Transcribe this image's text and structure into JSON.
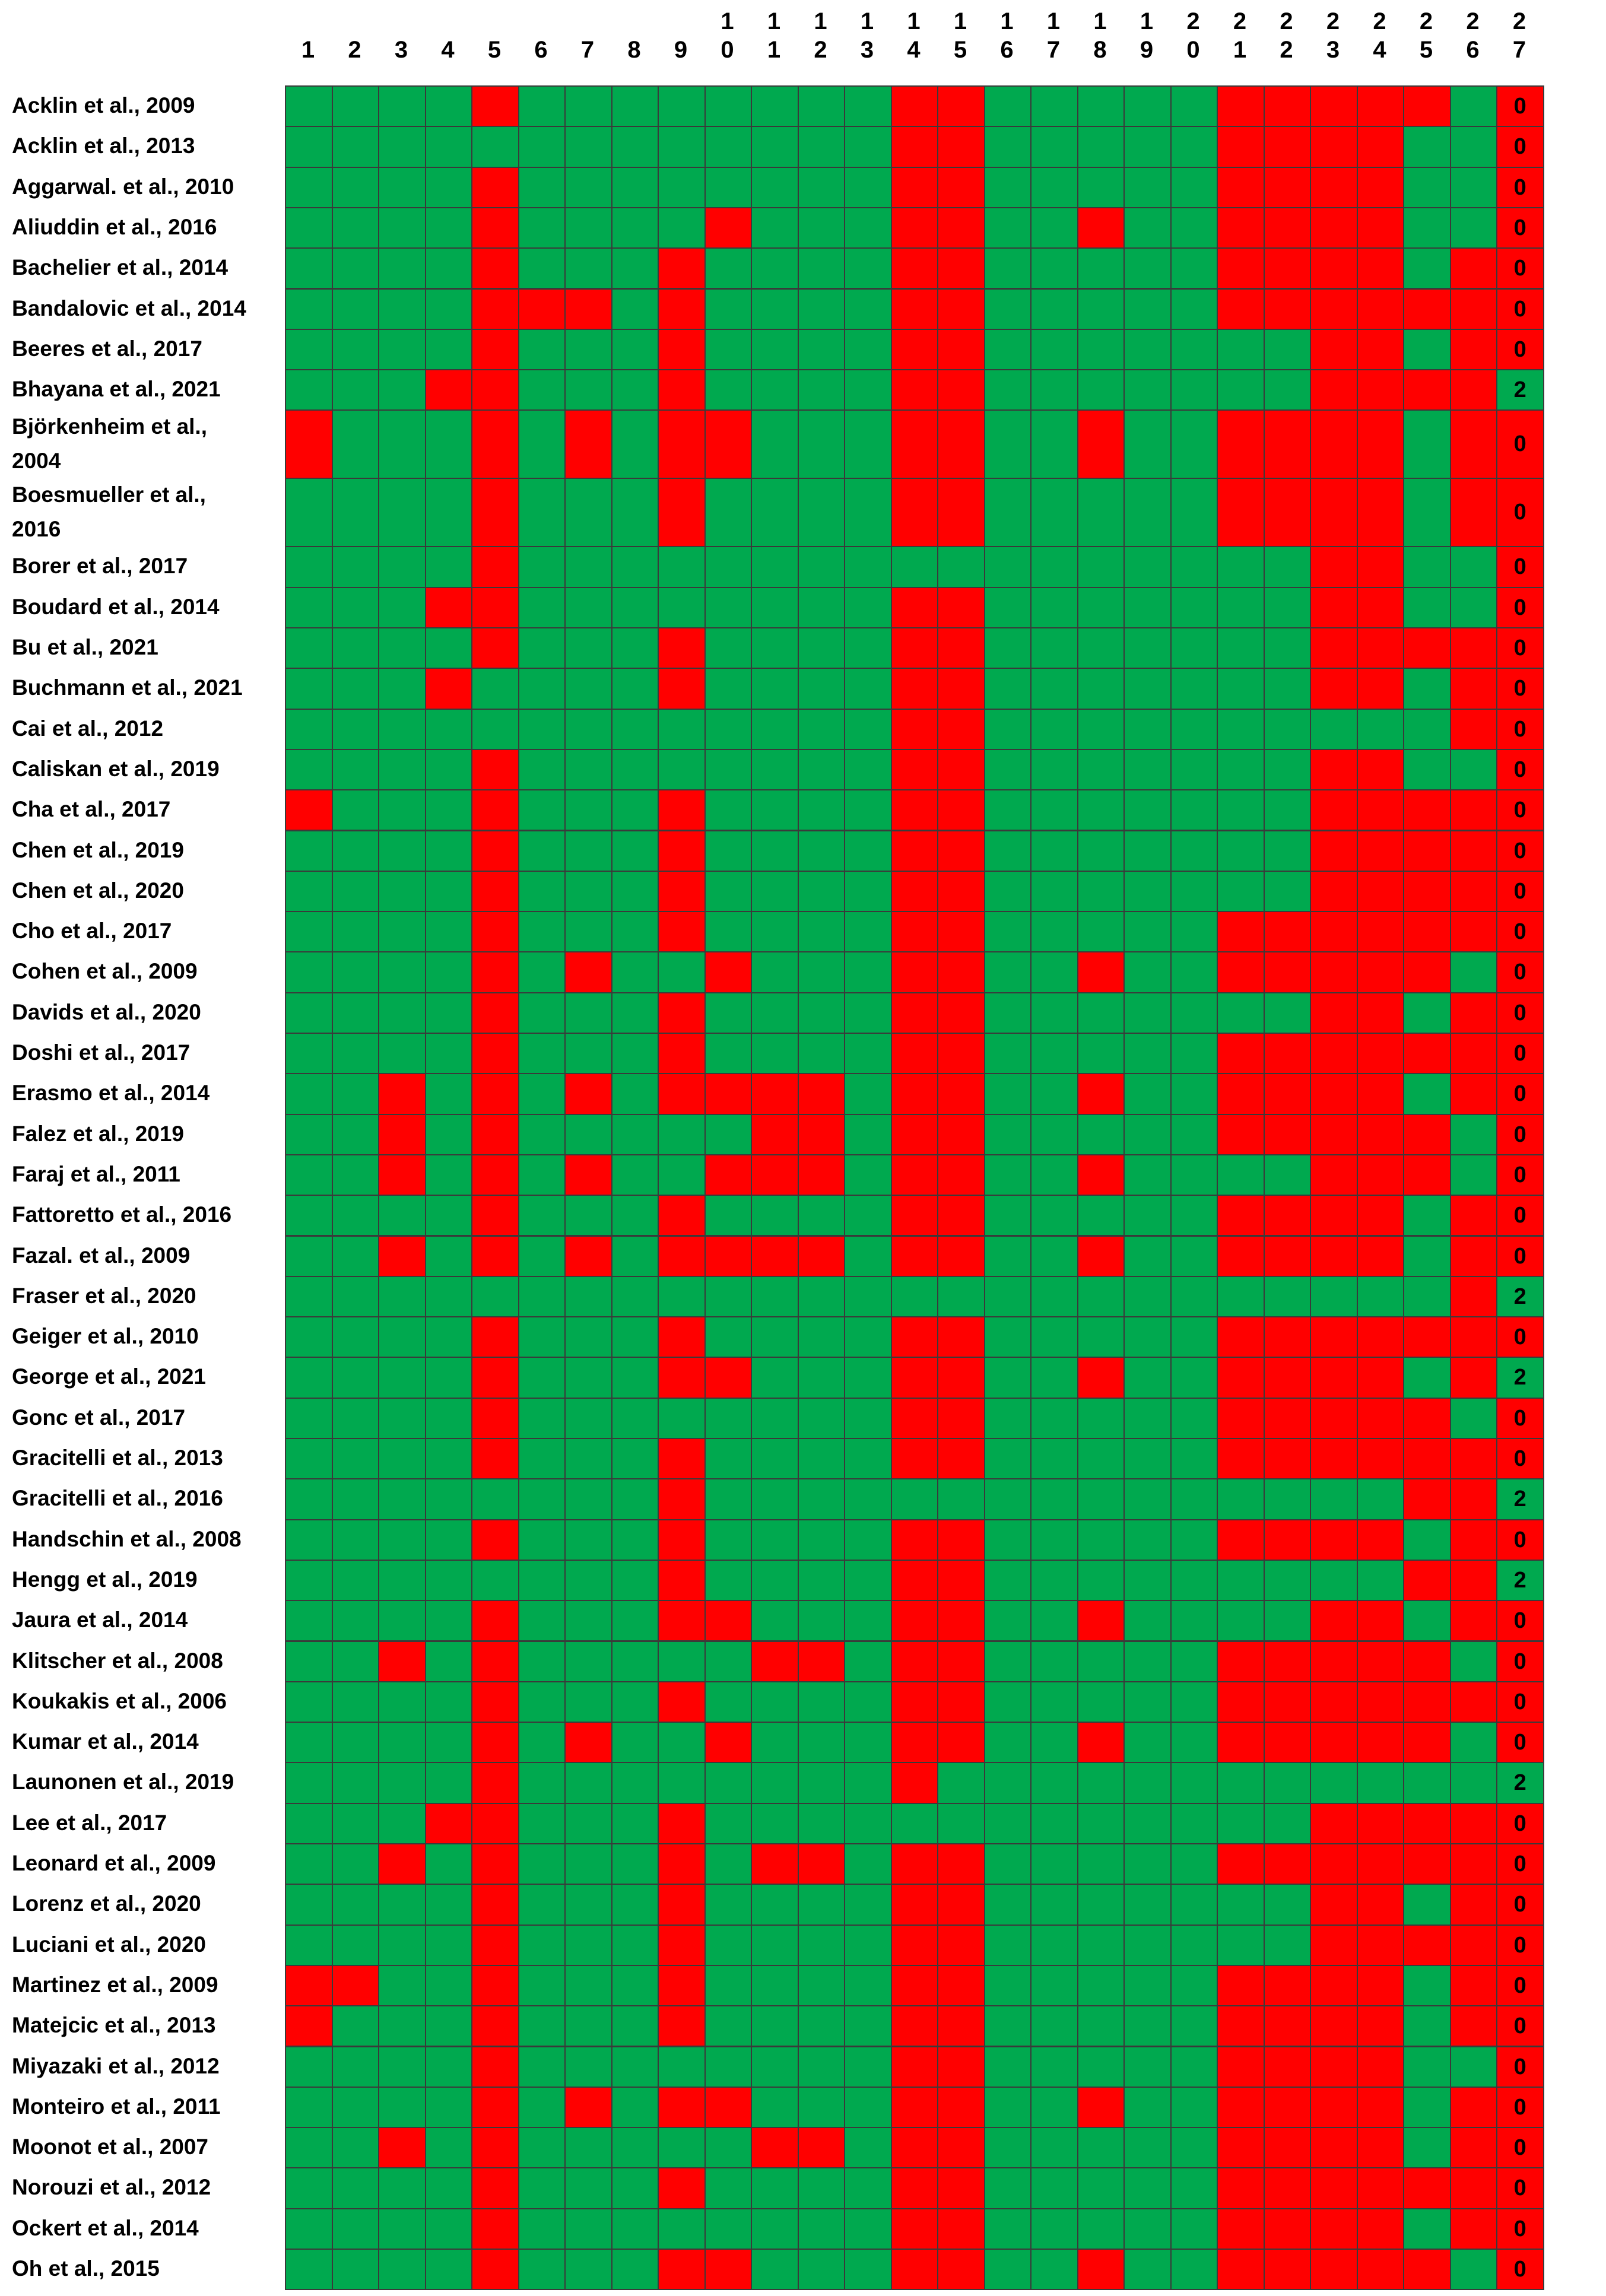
{
  "chart_data": {
    "type": "heatmap",
    "title": "",
    "colors": {
      "Y": "#00a94f",
      "N": "#ff0000",
      "border": "#3a3a3a"
    },
    "columns": [
      "1",
      "2",
      "3",
      "4",
      "5",
      "6",
      "7",
      "8",
      "9",
      "10",
      "11",
      "12",
      "13",
      "14",
      "15",
      "16",
      "17",
      "18",
      "19",
      "20",
      "21",
      "22",
      "23",
      "24",
      "25",
      "26",
      "27"
    ],
    "legend": {
      "Y": "green",
      "N": "red"
    },
    "rows": [
      {
        "study": "Acklin et al., 2009",
        "cells": "YYYYNYYYYYYYYNNYYYYYNNNNNY",
        "score": "0"
      },
      {
        "study": "Acklin et al., 2013",
        "cells": "YYYYYYYYYYYYYNNYYYYYNNNNYY",
        "score": "0"
      },
      {
        "study": "Aggarwal. et al., 2010",
        "cells": "YYYYNYYYYYYYYNNYYYYYNNNNYY",
        "score": "0"
      },
      {
        "study": "Aliuddin et al., 2016",
        "cells": "YYYYNYYYYNYYYNNYYNYYNNNNYY",
        "score": "0"
      },
      {
        "study": "Bachelier et al., 2014",
        "cells": "YYYYNYYYNYYYYNNYYYYYNNNNYN",
        "score": "0"
      },
      {
        "study": "Bandalovic et al., 2014",
        "cells": "YYYYNNNYNYYYYNNYYYYYNNNNNN",
        "score": "0"
      },
      {
        "study": "Beeres et al., 2017",
        "cells": "YYYYNYYYNYYYYNNYYYYYYYNNYN",
        "score": "0"
      },
      {
        "study": "Bhayana et al., 2021",
        "cells": "YYYNNYYYNYYYYNNYYYYYYYNNNN",
        "score": "2"
      },
      {
        "study": "Björkenheim et al., 2004",
        "cells": "NYYYNYNYNNYYYNNYYNYYNNNNYN",
        "score": "0"
      },
      {
        "study": "Boesmueller et al., 2016",
        "cells": "YYYYNYYYNYYYYNNYYYYYNNNNYN",
        "score": "0"
      },
      {
        "study": "Borer et al., 2017",
        "cells": "YYYYNYYYYYYYYYYYYYYYYYNNYY",
        "score": "0"
      },
      {
        "study": "Boudard et al., 2014",
        "cells": "YYYNNYYYYYYYYNNYYYYYYYNNYY",
        "score": "0"
      },
      {
        "study": "Bu et al., 2021",
        "cells": "YYYYNYYYNYYYYNNYYYYYYYNNNN",
        "score": "0"
      },
      {
        "study": "Buchmann et al., 2021",
        "cells": "YYYNYYYYNYYYYNNYYYYYYYNNYN",
        "score": "0"
      },
      {
        "study": "Cai et al., 2012",
        "cells": "YYYYYYYYYYYYYNNYYYYYYYYYYN",
        "score": "0"
      },
      {
        "study": "Caliskan et al., 2019",
        "cells": "YYYYNYYYYYYYYNNYYYYYYYNNYY",
        "score": "0"
      },
      {
        "study": "Cha et al., 2017",
        "cells": "NYYYNYYYNYYYYNNYYYYYYYNNNN",
        "score": "0"
      },
      {
        "study": "Chen et al., 2019",
        "cells": "YYYYNYYYNYYYYNNYYYYYYYNNNN",
        "score": "0"
      },
      {
        "study": "Chen et al., 2020",
        "cells": "YYYYNYYYNYYYYNNYYYYYYYNNNN",
        "score": "0"
      },
      {
        "study": "Cho et al., 2017",
        "cells": "YYYYNYYYNYYYYNNYYYYYNNNNNN",
        "score": "0"
      },
      {
        "study": "Cohen et al., 2009",
        "cells": "YYYYNYNYYNYYYNNYYNYYNNNNNY",
        "score": "0"
      },
      {
        "study": "Davids et al., 2020",
        "cells": "YYYYNYYYNYYYYNNYYYYYYYNNYN",
        "score": "0"
      },
      {
        "study": "Doshi et al., 2017",
        "cells": "YYYYNYYYNYYYYNNYYYYYNNNNNN",
        "score": "0"
      },
      {
        "study": "Erasmo et al., 2014",
        "cells": "YYNYNYNYNNNNYNNYYNYYNNNNYN",
        "score": "0"
      },
      {
        "study": "Falez et al., 2019",
        "cells": "YYNYNYYYYYNNYNNYYYYYNNNNNY",
        "score": "0"
      },
      {
        "study": "Faraj et al., 2011",
        "cells": "YYNYNYNYYNNNYNNYYNYYYYNNNY",
        "score": "0"
      },
      {
        "study": "Fattoretto et al., 2016",
        "cells": "YYYYNYYYNYYYYNNYYYYYNNNNYN",
        "score": "0"
      },
      {
        "study": "Fazal. et al., 2009",
        "cells": "YYNYNYNYNNNNYNNYYNYYNNNNYN",
        "score": "0"
      },
      {
        "study": "Fraser et al., 2020",
        "cells": "YYYYYYYYYYYYYYYYYYYYYYYYYN",
        "score": "2"
      },
      {
        "study": "Geiger et al., 2010",
        "cells": "YYYYNYYYNYYYYNNYYYYYNNNNNN",
        "score": "0"
      },
      {
        "study": "George et al., 2021",
        "cells": "YYYYNYYYNNYYYNNYYNYYNNNNYN",
        "score": "2"
      },
      {
        "study": "Gonc et al., 2017",
        "cells": "YYYYNYYYYYYYYNNYYYYYNNNNNY",
        "score": "0"
      },
      {
        "study": "Gracitelli et al., 2013",
        "cells": "YYYYNYYYNYYYYNNYYYYYNNNNNN",
        "score": "0"
      },
      {
        "study": "Gracitelli et al., 2016",
        "cells": "YYYYYYYYNYYYYYYYYYYYYYYYNN",
        "score": "2"
      },
      {
        "study": "Handschin et al., 2008",
        "cells": "YYYYNYYYNYYYYNNYYYYYNNNNYN",
        "score": "0"
      },
      {
        "study": "Hengg et al., 2019",
        "cells": "YYYYYYYYNYYYYNNYYYYYYYYYNN",
        "score": "2"
      },
      {
        "study": "Jaura et al., 2014",
        "cells": "YYYYNYYYNNYYYNNYYNYYYYNNYN",
        "score": "0"
      },
      {
        "study": "Klitscher et al., 2008",
        "cells": "YYNYNYYYYYNNYNNYYYYYNNNNNY",
        "score": "0"
      },
      {
        "study": "Koukakis et al., 2006",
        "cells": "YYYYNYYYNYYYYNNYYYYYNNNNNN",
        "score": "0"
      },
      {
        "study": "Kumar et al., 2014",
        "cells": "YYYYNYNYYNYYYNNYYNYYNNNNNY",
        "score": "0"
      },
      {
        "study": "Launonen et al., 2019",
        "cells": "YYYYNYYYYYYYYNYYYYYYYYYYYY",
        "score": "2"
      },
      {
        "study": "Lee et al., 2017",
        "cells": "YYYNNYYYNYYYYYYYYYYYYYNNNN",
        "score": "0"
      },
      {
        "study": "Leonard et al., 2009",
        "cells": "YYNYNYYYNYNNYNNYYYYYNNNNNN",
        "score": "0"
      },
      {
        "study": "Lorenz et al., 2020",
        "cells": "YYYYNYYYNYYYYNNYYYYYYYNNYN",
        "score": "0"
      },
      {
        "study": "Luciani et al., 2020",
        "cells": "YYYYNYYYNYYYYNNYYYYYYYNNNN",
        "score": "0"
      },
      {
        "study": "Martinez et al., 2009",
        "cells": "NNYYNYYYNYYYYNNYYYYYNNNNYN",
        "score": "0"
      },
      {
        "study": "Matejcic et al., 2013",
        "cells": "NYYYNYYYNYYYYNNYYYYYNNNNYN",
        "score": "0"
      },
      {
        "study": "Miyazaki et al., 2012",
        "cells": "YYYYNYYYYYYYYNNYYYYYNNNNYY",
        "score": "0"
      },
      {
        "study": "Monteiro et al., 2011",
        "cells": "YYYYNYNYNNYYYNNYYNYYNNNNYN",
        "score": "0"
      },
      {
        "study": "Moonot et al., 2007",
        "cells": "YYNYNYYYYYNNYNNYYYYYNNNNYN",
        "score": "0"
      },
      {
        "study": "Norouzi et al., 2012",
        "cells": "YYYYNYYYNYYYYNNYYYYYNNNNNN",
        "score": "0"
      },
      {
        "study": "Ockert et al., 2014",
        "cells": "YYYYNYYYYYYYYNNYYYYYNNNNYN",
        "score": "0"
      },
      {
        "study": "Oh et al., 2015",
        "cells": "YYYYNYYYNNYYYNNYYNYYNNNNNY",
        "score": "0"
      }
    ]
  }
}
